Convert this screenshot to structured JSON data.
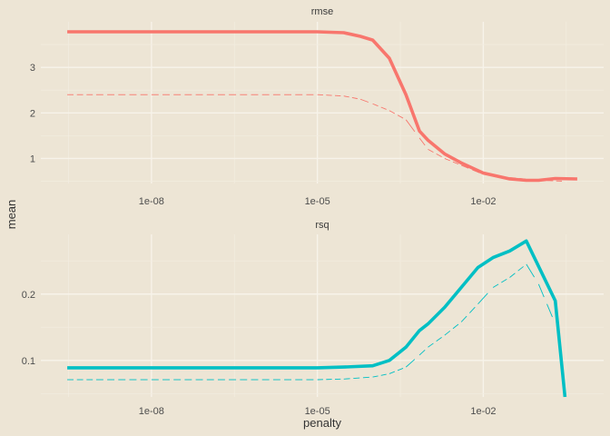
{
  "colors": {
    "rmse": "#F8766D",
    "rsq": "#00BFC4",
    "background": "#EDE5D5"
  },
  "chart_data": {
    "type": "line",
    "xlabel": "penalty",
    "ylabel": "mean",
    "x_scale": "log10",
    "x_ticks": [
      1e-08,
      1e-05,
      0.01
    ],
    "x_tick_labels": [
      "1e-08",
      "1e-05",
      "1e-02"
    ],
    "xlim": [
      1e-10,
      1.5
    ],
    "grid": true,
    "legend": "none",
    "facets": [
      {
        "name": "rmse",
        "ylim": [
          0.45,
          4.0
        ],
        "y_ticks": [
          1,
          2,
          3
        ],
        "y_tick_labels": [
          "1",
          "2",
          "3"
        ],
        "line": {
          "x": [
            3e-10,
            1e-09,
            1e-08,
            1e-07,
            1e-06,
            3e-06,
            1e-05,
            3e-05,
            6e-05,
            0.0001,
            0.0002,
            0.0004,
            0.0007,
            0.001,
            0.002,
            0.004,
            0.01,
            0.03,
            0.06,
            0.1,
            0.2,
            0.5
          ],
          "y": [
            3.78,
            3.78,
            3.78,
            3.78,
            3.78,
            3.78,
            3.78,
            3.76,
            3.68,
            3.6,
            3.2,
            2.4,
            1.6,
            1.4,
            1.1,
            0.9,
            0.68,
            0.55,
            0.52,
            0.52,
            0.56,
            0.55
          ]
        },
        "dashes": {
          "x": [
            3e-10,
            1e-09,
            1e-08,
            1e-07,
            1e-06,
            1e-05,
            3e-05,
            6e-05,
            0.0001,
            0.0002,
            0.0004,
            0.0007,
            0.001,
            0.002,
            0.004,
            0.01,
            0.03,
            0.1,
            0.3
          ],
          "y": [
            2.4,
            2.4,
            2.4,
            2.4,
            2.4,
            2.4,
            2.37,
            2.3,
            2.2,
            2.05,
            1.85,
            1.45,
            1.2,
            1.0,
            0.85,
            0.65,
            0.58,
            0.52,
            0.5
          ]
        }
      },
      {
        "name": "rsq",
        "ylim": [
          0.045,
          0.29
        ],
        "y_ticks": [
          0.1,
          0.2
        ],
        "y_tick_labels": [
          "0.1",
          "0.2"
        ],
        "line": {
          "x": [
            3e-10,
            1e-09,
            1e-08,
            1e-07,
            1e-06,
            1e-05,
            3e-05,
            0.0001,
            0.0002,
            0.0004,
            0.0007,
            0.001,
            0.002,
            0.004,
            0.008,
            0.015,
            0.03,
            0.06,
            0.2,
            0.3
          ],
          "y": [
            0.089,
            0.089,
            0.089,
            0.089,
            0.089,
            0.089,
            0.09,
            0.092,
            0.1,
            0.12,
            0.145,
            0.155,
            0.18,
            0.21,
            0.24,
            0.255,
            0.265,
            0.28,
            0.19,
            0.045
          ]
        },
        "dashes": {
          "x": [
            3e-10,
            1e-09,
            1e-08,
            1e-07,
            1e-06,
            1e-05,
            3e-05,
            0.0001,
            0.0002,
            0.0004,
            0.0007,
            0.001,
            0.002,
            0.004,
            0.008,
            0.015,
            0.03,
            0.06,
            0.1,
            0.2
          ],
          "y": [
            0.071,
            0.071,
            0.071,
            0.071,
            0.071,
            0.071,
            0.072,
            0.075,
            0.08,
            0.09,
            0.108,
            0.12,
            0.138,
            0.158,
            0.185,
            0.21,
            0.225,
            0.245,
            0.215,
            0.155
          ]
        }
      }
    ]
  }
}
